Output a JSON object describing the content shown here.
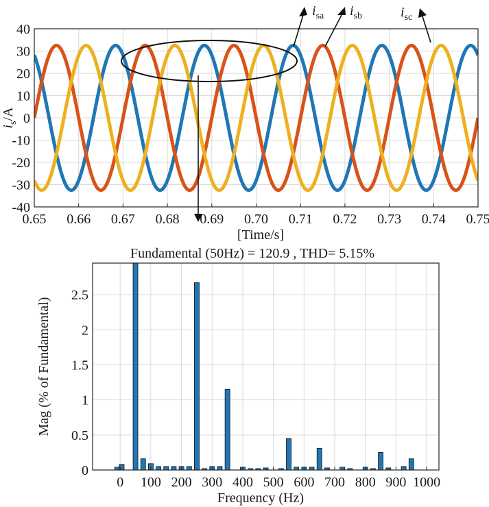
{
  "chart_data": [
    {
      "type": "line",
      "title": "",
      "xlabel": "[Time/s]",
      "ylabel_main": "i",
      "ylabel_sub": "s",
      "ylabel_unit": "/A",
      "xlim": [
        0.65,
        0.75
      ],
      "ylim": [
        -40,
        40
      ],
      "x_ticks": [
        "0.65",
        "0.66",
        "0.67",
        "0.68",
        "0.69",
        "0.70",
        "0.71",
        "0.72",
        "0.73",
        "0.74",
        "0.75"
      ],
      "y_ticks": [
        "40",
        "30",
        "20",
        "10",
        "0",
        "-10",
        "-20",
        "-30",
        "-40"
      ],
      "grid": true,
      "series": [
        {
          "name": "isa",
          "label_main": "i",
          "label_sub": "sa",
          "amplitude": 32.5,
          "frequency_hz": 50,
          "phase_deg": -60,
          "color": "#1f77b4"
        },
        {
          "name": "isb",
          "label_main": "i",
          "label_sub": "sb",
          "amplitude": 32.5,
          "frequency_hz": 50,
          "phase_deg": -180,
          "color": "#d95319"
        },
        {
          "name": "isc",
          "label_main": "i",
          "label_sub": "sc",
          "amplitude": 32.5,
          "frequency_hz": 50,
          "phase_deg": 60,
          "color": "#edb120"
        }
      ],
      "annotation": "ellipse highlighting one period with arrow to spectrum"
    },
    {
      "type": "bar",
      "title": "Fundamental (50Hz) = 120.9 , THD= 5.15%",
      "xlabel": "Frequency (Hz)",
      "ylabel": "Mag (% of Fundamental)",
      "xlim": [
        -90,
        1040
      ],
      "ylim": [
        0,
        2.95
      ],
      "x_ticks": [
        "0",
        "100",
        "200",
        "300",
        "400",
        "500",
        "600",
        "700",
        "800",
        "900",
        "1000"
      ],
      "y_ticks": [
        "0",
        "0.5",
        "1",
        "1.5",
        "2",
        "2.5"
      ],
      "grid": true,
      "color": "#1f77b4",
      "bars": [
        {
          "f": -10,
          "v": 0.04
        },
        {
          "f": 5,
          "v": 0.08
        },
        {
          "f": 50,
          "v": 2.95
        },
        {
          "f": 75,
          "v": 0.16
        },
        {
          "f": 100,
          "v": 0.09
        },
        {
          "f": 125,
          "v": 0.05
        },
        {
          "f": 150,
          "v": 0.05
        },
        {
          "f": 175,
          "v": 0.05
        },
        {
          "f": 200,
          "v": 0.05
        },
        {
          "f": 225,
          "v": 0.05
        },
        {
          "f": 250,
          "v": 2.67
        },
        {
          "f": 275,
          "v": 0.02
        },
        {
          "f": 300,
          "v": 0.05
        },
        {
          "f": 325,
          "v": 0.05
        },
        {
          "f": 350,
          "v": 1.15
        },
        {
          "f": 400,
          "v": 0.04
        },
        {
          "f": 425,
          "v": 0.02
        },
        {
          "f": 450,
          "v": 0.02
        },
        {
          "f": 475,
          "v": 0.03
        },
        {
          "f": 525,
          "v": 0.02
        },
        {
          "f": 550,
          "v": 0.45
        },
        {
          "f": 575,
          "v": 0.04
        },
        {
          "f": 600,
          "v": 0.04
        },
        {
          "f": 625,
          "v": 0.04
        },
        {
          "f": 650,
          "v": 0.31
        },
        {
          "f": 675,
          "v": 0.03
        },
        {
          "f": 725,
          "v": 0.04
        },
        {
          "f": 750,
          "v": 0.02
        },
        {
          "f": 800,
          "v": 0.04
        },
        {
          "f": 825,
          "v": 0.02
        },
        {
          "f": 850,
          "v": 0.25
        },
        {
          "f": 875,
          "v": 0.03
        },
        {
          "f": 925,
          "v": 0.05
        },
        {
          "f": 950,
          "v": 0.16
        }
      ]
    }
  ]
}
